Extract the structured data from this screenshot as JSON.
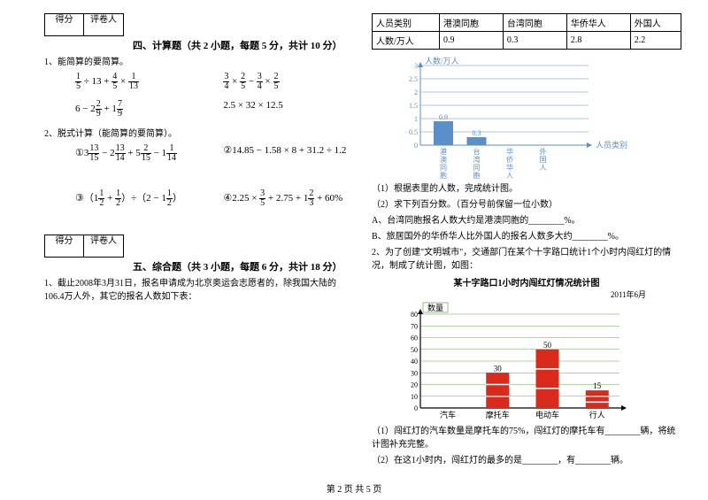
{
  "scorebox": {
    "scorer": "得分",
    "reviewer": "评卷人"
  },
  "section4": {
    "title": "四、计算题（共 2 小题，每题 5 分，共计 10 分）",
    "q1": "1、能简算的要简算。",
    "q2": "2、脱式计算（能简算的要简算）。",
    "row1a": "<span class='frac'><span class='n'>1</span><span class='d'>5</span></span> ÷ 13 + <span class='frac'><span class='n'>4</span><span class='d'>5</span></span> × <span class='frac'><span class='n'>1</span><span class='d'>13</span></span>",
    "row1b": "<span class='frac'><span class='n'>3</span><span class='d'>4</span></span> × <span class='frac'><span class='n'>2</span><span class='d'>5</span></span> − <span class='frac'><span class='n'>3</span><span class='d'>4</span></span> × <span class='frac'><span class='n'>2</span><span class='d'>5</span></span>",
    "row2a": "6 − 2<span class='frac'><span class='n'>2</span><span class='d'>9</span></span> + 1<span class='frac'><span class='n'>7</span><span class='d'>9</span></span>",
    "row2b": "2.5 × 32 × 12.5",
    "row3a": "①3<span class='frac'><span class='n'>13</span><span class='d'>15</span></span> − 2<span class='frac'><span class='n'>13</span><span class='d'>14</span></span> + 5<span class='frac'><span class='n'>2</span><span class='d'>15</span></span> − 1<span class='frac'><span class='n'>1</span><span class='d'>14</span></span>",
    "row3b": "②14.85 − 1.58 × 8 + 31.2 ÷ 1.2",
    "row4a": "③（1<span class='frac'><span class='n'>1</span><span class='d'>2</span></span> + <span class='frac'><span class='n'>1</span><span class='d'>2</span></span>）÷（2 − 1<span class='frac'><span class='n'>1</span><span class='d'>2</span></span>）",
    "row4b": "④2.25 × <span class='frac'><span class='n'>3</span><span class='d'>5</span></span> + 2.75 + 1<span class='frac'><span class='n'>2</span><span class='d'>3</span></span> + 60%"
  },
  "section5": {
    "title": "五、综合题（共 3 小题，每题 6 分，共计 18 分）",
    "q1": "1、截止2008年3月31日，报名申请成为北京奥运会志愿者的，除我国大陆的106.4万人外，其它的报名人数如下表："
  },
  "table": {
    "headers": [
      "人员类别",
      "港澳同胞",
      "台湾同胞",
      "华侨华人",
      "外国人"
    ],
    "row": [
      "人数/万人",
      "0.9",
      "0.3",
      "2.8",
      "2.2"
    ]
  },
  "chart1": {
    "ylabel": "人数/万人",
    "xlabel": "人员类别",
    "yticks": [
      "0",
      "0.5",
      "1",
      "1.5",
      "2",
      "2.5",
      "3"
    ],
    "categories": [
      "港澳同胞",
      "台湾同胞",
      "华侨华人",
      "外国人"
    ],
    "values": [
      0.9,
      0.3,
      0,
      0
    ],
    "bar_color": "#5a8fc9",
    "grid_color": "#5a8fc9",
    "axis_color": "#5a8fc9",
    "text_color": "#5a8fc9",
    "ymax": 3
  },
  "q1_sub": {
    "a": "（1）根据表里的人数，完成统计图。",
    "b": "（2）求下列百分数。（百分号前保留一位小数）",
    "c": "A、台湾同胞报名人数大约是港澳同胞的________%。",
    "d": "B、旅居国外的华侨华人比外国人的报名人数多大约________%。"
  },
  "q2": "2、为了创建\"文明城市\"，交通部门在某个十字路口统计1个小时内闯红灯的情况，制成了统计图，如图：",
  "chart2": {
    "title": "某十字路口1小时内闯红灯情况统计图",
    "subtitle": "2011年6月",
    "ylabel": "数量",
    "yticks": [
      "0",
      "10",
      "20",
      "30",
      "40",
      "50",
      "60",
      "70",
      "80"
    ],
    "categories": [
      "汽车",
      "摩托车",
      "电动车",
      "行人"
    ],
    "values": [
      0,
      30,
      50,
      15
    ],
    "labels": [
      "",
      "30",
      "50",
      "15"
    ],
    "bar_color": "#d92a1c",
    "grid_color": "#6aa84f",
    "axis_color": "#000000",
    "ymax": 80
  },
  "q2_sub": {
    "a": "（1）闯红灯的汽车数量是摩托车的75%，闯红灯的摩托车有________辆，将统计图补充完整。",
    "b": "（2）在这1小时内，闯红灯的最多的是________，有________辆。"
  },
  "footer": "第 2 页 共 5 页"
}
